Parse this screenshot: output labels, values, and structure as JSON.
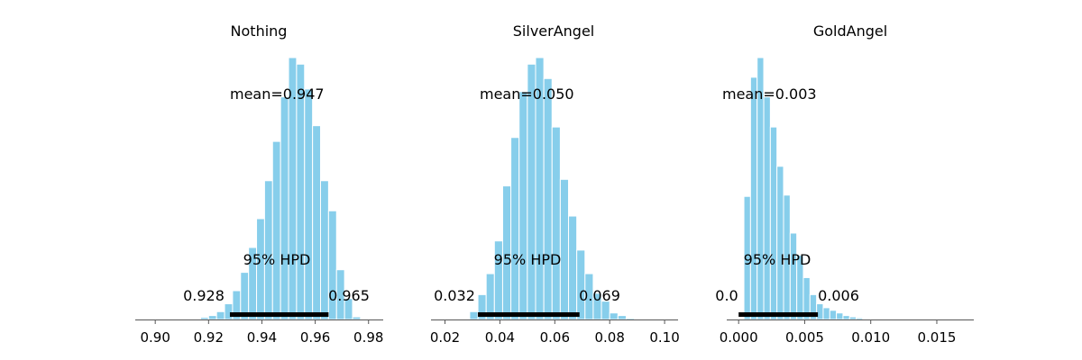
{
  "figure": {
    "bar_color": "#87ceeb",
    "bar_edge_color": "#ffffff",
    "hpd_color": "#000000",
    "axis_color": "#555555"
  },
  "chart_data": [
    {
      "type": "bar",
      "title": "Nothing",
      "mean_label": "mean=0.947",
      "hpd_label": "95% HPD",
      "hpd_low_label": "0.928",
      "hpd_high_label": "0.965",
      "hpd": [
        0.928,
        0.965
      ],
      "xlim": [
        0.8925,
        0.9855
      ],
      "xticks": [
        0.9,
        0.92,
        0.94,
        0.96,
        0.98
      ],
      "xtick_labels": [
        "0.90",
        "0.92",
        "0.94",
        "0.96",
        "0.98"
      ],
      "bins": [
        0.914,
        0.917,
        0.92,
        0.923,
        0.926,
        0.929,
        0.932,
        0.935,
        0.938,
        0.941,
        0.944,
        0.947,
        0.95,
        0.953,
        0.956,
        0.959,
        0.962,
        0.965,
        0.968,
        0.971,
        0.974
      ],
      "bin_width": 0.003,
      "values": [
        0.3,
        0.8,
        1.5,
        3.0,
        6.0,
        11.0,
        18.0,
        27.5,
        38.5,
        53.0,
        68.0,
        85.0,
        100.0,
        97.5,
        88.0,
        74.0,
        53.0,
        41.5,
        19.0,
        8.0,
        1.0
      ],
      "ylim": [
        0,
        100
      ]
    },
    {
      "type": "bar",
      "title": "SilverAngel",
      "mean_label": "mean=0.050",
      "hpd_label": "95% HPD",
      "hpd_low_label": "0.032",
      "hpd_high_label": "0.069",
      "hpd": [
        0.032,
        0.069
      ],
      "xlim": [
        0.0149,
        0.1049
      ],
      "xticks": [
        0.02,
        0.04,
        0.06,
        0.08,
        0.1
      ],
      "xtick_labels": [
        "0.02",
        "0.04",
        "0.06",
        "0.08",
        "0.10"
      ],
      "bins": [
        0.026,
        0.029,
        0.032,
        0.035,
        0.038,
        0.041,
        0.044,
        0.047,
        0.05,
        0.053,
        0.056,
        0.059,
        0.062,
        0.065,
        0.068,
        0.071,
        0.074,
        0.077,
        0.08,
        0.083,
        0.086,
        0.089
      ],
      "bin_width": 0.003,
      "values": [
        0.3,
        3.0,
        9.5,
        17.5,
        30.0,
        51.0,
        69.5,
        87.0,
        97.5,
        100.0,
        92.0,
        73.5,
        53.5,
        39.5,
        26.5,
        17.5,
        10.0,
        7.0,
        2.5,
        1.5,
        0.5,
        0.3
      ],
      "ylim": [
        0,
        100
      ]
    },
    {
      "type": "bar",
      "title": "GoldAngel",
      "mean_label": "mean=0.003",
      "hpd_label": "95% HPD",
      "hpd_low_label": "0.0",
      "hpd_high_label": "0.006",
      "hpd": [
        0.0,
        0.006
      ],
      "xlim": [
        -0.0009,
        0.0178
      ],
      "xticks": [
        0.0,
        0.005,
        0.01,
        0.015
      ],
      "xtick_labels": [
        "0.000",
        "0.005",
        "0.010",
        "0.015"
      ],
      "bins": [
        0.0004,
        0.0009,
        0.0014,
        0.0019,
        0.0024,
        0.0029,
        0.0034,
        0.0039,
        0.0044,
        0.0049,
        0.0054,
        0.0059,
        0.0064,
        0.0069,
        0.0074,
        0.0079,
        0.0084,
        0.0089,
        0.0094,
        0.0099
      ],
      "bin_width": 0.0005,
      "values": [
        47.0,
        92.5,
        100.0,
        85.0,
        73.5,
        58.5,
        47.5,
        33.0,
        24.5,
        16.0,
        9.5,
        6.0,
        4.5,
        3.5,
        2.5,
        1.5,
        1.0,
        0.6,
        0.3,
        0.2
      ],
      "ylim": [
        0,
        100
      ]
    }
  ]
}
